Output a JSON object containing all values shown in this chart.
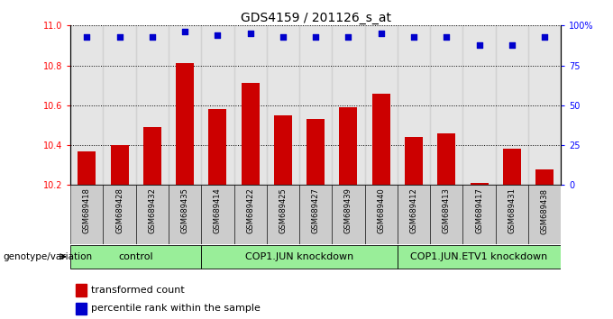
{
  "title": "GDS4159 / 201126_s_at",
  "samples": [
    "GSM689418",
    "GSM689428",
    "GSM689432",
    "GSM689435",
    "GSM689414",
    "GSM689422",
    "GSM689425",
    "GSM689427",
    "GSM689439",
    "GSM689440",
    "GSM689412",
    "GSM689413",
    "GSM689417",
    "GSM689431",
    "GSM689438"
  ],
  "bar_values": [
    10.37,
    10.4,
    10.49,
    10.81,
    10.58,
    10.71,
    10.55,
    10.53,
    10.59,
    10.66,
    10.44,
    10.46,
    10.21,
    10.38,
    10.28
  ],
  "percentile_values": [
    93,
    93,
    93,
    96,
    94,
    95,
    93,
    93,
    93,
    95,
    93,
    93,
    88,
    88,
    93
  ],
  "ylim_left": [
    10.2,
    11.0
  ],
  "ylim_right": [
    0,
    100
  ],
  "yticks_left": [
    10.2,
    10.4,
    10.6,
    10.8,
    11.0
  ],
  "yticks_right": [
    0,
    25,
    50,
    75,
    100
  ],
  "ytick_right_labels": [
    "0",
    "25",
    "50",
    "75",
    "100%"
  ],
  "bar_color": "#cc0000",
  "dot_color": "#0000cc",
  "groups": [
    {
      "label": "control",
      "start": 0,
      "end": 4
    },
    {
      "label": "COP1.JUN knockdown",
      "start": 4,
      "end": 10
    },
    {
      "label": "COP1.JUN.ETV1 knockdown",
      "start": 10,
      "end": 15
    }
  ],
  "legend_bar_label": "transformed count",
  "legend_dot_label": "percentile rank within the sample",
  "xlabel_left": "genotype/variation",
  "title_fontsize": 10,
  "tick_fontsize": 7,
  "bar_width": 0.55,
  "group_label_fontsize": 8,
  "background_color": "#ffffff",
  "sample_bg_color": "#cccccc",
  "group_color": "#99ee99"
}
